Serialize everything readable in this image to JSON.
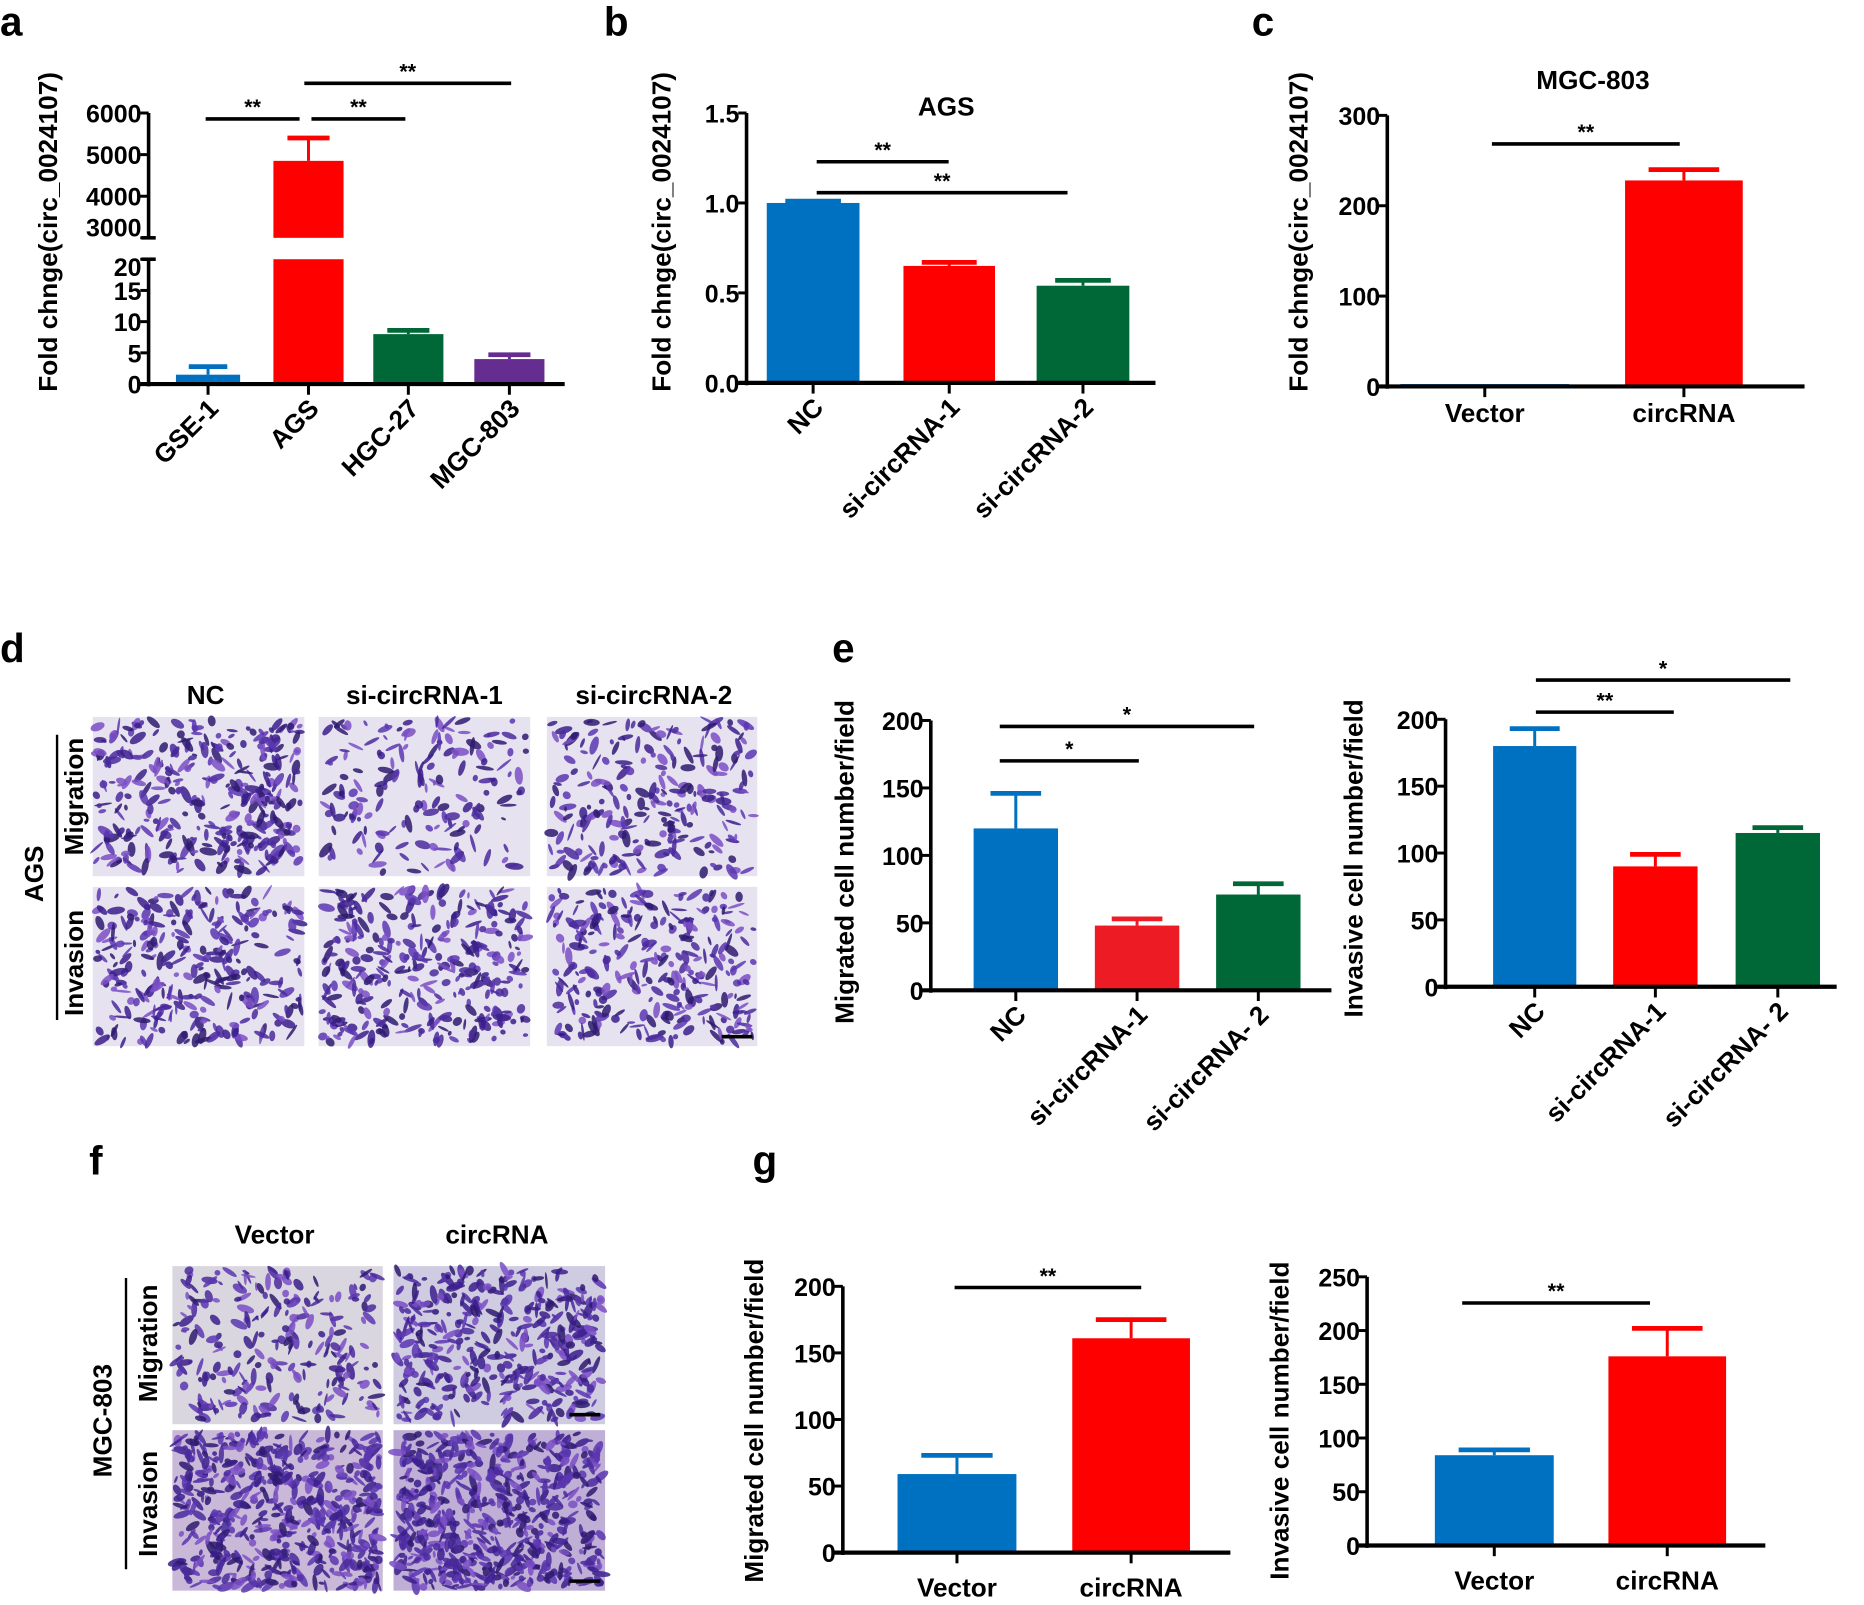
{
  "panel_labels": {
    "a": "a",
    "b": "b",
    "c": "c",
    "d": "d",
    "e": "e",
    "f": "f",
    "g": "g"
  },
  "panel_d": {
    "columns": [
      "NC",
      "si-circRNA-1",
      "si-circRNA-2"
    ],
    "rows": [
      "Migration",
      "Invasion"
    ],
    "group": "AGS"
  },
  "panel_f": {
    "columns": [
      "Vector",
      "circRNA"
    ],
    "rows": [
      "Migration",
      "Invasion"
    ],
    "group": "MGC-803"
  },
  "chart_data": [
    {
      "panel": "a",
      "type": "bar",
      "title": "",
      "ylabel": "Fold chnge(circ_0024107)",
      "categories": [
        "GSE-1",
        "AGS",
        "HGC-27",
        "MGC-803"
      ],
      "values": [
        1.5,
        4850,
        8,
        4
      ],
      "error_upper": [
        2.8,
        5400,
        8.6,
        4.7
      ],
      "colors": [
        "#0070c0",
        "#ff0000",
        "#006837",
        "#662d91"
      ],
      "yticks": [
        0,
        5,
        10,
        15,
        20,
        3000,
        4000,
        5000,
        6000
      ],
      "axis_break": [
        20,
        3000
      ],
      "ylim": [
        0,
        6000
      ],
      "significance": [
        {
          "from": "GSE-1",
          "to": "AGS",
          "label": "**"
        },
        {
          "from": "AGS",
          "to": "HGC-27",
          "label": "**"
        },
        {
          "from": "AGS",
          "to": "MGC-803",
          "label": "**"
        }
      ]
    },
    {
      "panel": "b",
      "type": "bar",
      "title": "AGS",
      "ylabel": "Fold chnge(circ_0024107)",
      "categories": [
        "NC",
        "si-circRNA-1",
        "si-circRNA-2"
      ],
      "values": [
        1.0,
        0.65,
        0.54
      ],
      "error_upper": [
        1.01,
        0.67,
        0.57
      ],
      "colors": [
        "#0070c0",
        "#ff0000",
        "#006837"
      ],
      "yticks": [
        "0.0",
        "0.5",
        "1.0",
        "1.5"
      ],
      "ylim": [
        0,
        1.5
      ],
      "significance": [
        {
          "from": "NC",
          "to": "si-circRNA-1",
          "label": "**"
        },
        {
          "from": "NC",
          "to": "si-circRNA-2",
          "label": "**"
        }
      ]
    },
    {
      "panel": "c",
      "type": "bar",
      "title": "MGC-803",
      "ylabel": "Fold chnge(circ_0024107)",
      "categories": [
        "Vector",
        "circRNA"
      ],
      "values": [
        1,
        228
      ],
      "error_upper": [
        1,
        240
      ],
      "colors": [
        "#0070c0",
        "#ff0000"
      ],
      "yticks": [
        0,
        100,
        200,
        300
      ],
      "ylim": [
        0,
        300
      ],
      "significance": [
        {
          "from": "Vector",
          "to": "circRNA",
          "label": "**"
        }
      ]
    },
    {
      "panel": "e",
      "type": "bar",
      "title": "",
      "ylabel": "Migrated cell number/field",
      "categories": [
        "NC",
        "si-circRNA-1",
        "si-circRNA- 2"
      ],
      "values": [
        120,
        48,
        71
      ],
      "error_upper": [
        146,
        53,
        79
      ],
      "colors": [
        "#0070c0",
        "#ed1c24",
        "#006837"
      ],
      "yticks": [
        0,
        50,
        100,
        150,
        200
      ],
      "ylim": [
        0,
        200
      ],
      "significance": [
        {
          "from": "NC",
          "to": "si-circRNA-1",
          "label": "*"
        },
        {
          "from": "NC",
          "to": "si-circRNA- 2",
          "label": "*"
        }
      ]
    },
    {
      "panel": "e",
      "type": "bar",
      "title": "",
      "ylabel": "Invasive cell number/field",
      "categories": [
        "NC",
        "si-circRNA-1",
        "si-circRNA- 2"
      ],
      "values": [
        180,
        90,
        115
      ],
      "error_upper": [
        193,
        99,
        119
      ],
      "colors": [
        "#0070c0",
        "#ff0000",
        "#006837"
      ],
      "yticks": [
        0,
        50,
        100,
        150,
        200
      ],
      "ylim": [
        0,
        200
      ],
      "significance": [
        {
          "from": "NC",
          "to": "si-circRNA-1",
          "label": "**"
        },
        {
          "from": "NC",
          "to": "si-circRNA- 2",
          "label": "*"
        }
      ]
    },
    {
      "panel": "g",
      "type": "bar",
      "title": "",
      "ylabel": "Migrated cell number/field",
      "categories": [
        "Vector",
        "circRNA"
      ],
      "values": [
        59,
        161
      ],
      "error_upper": [
        73,
        175
      ],
      "colors": [
        "#0070c0",
        "#ff0000"
      ],
      "yticks": [
        0,
        50,
        100,
        150,
        200
      ],
      "ylim": [
        0,
        200
      ],
      "significance": [
        {
          "from": "Vector",
          "to": "circRNA",
          "label": "**"
        }
      ]
    },
    {
      "panel": "g",
      "type": "bar",
      "title": "",
      "ylabel": "Invasive cell number/field",
      "categories": [
        "Vector",
        "circRNA"
      ],
      "values": [
        84,
        176
      ],
      "error_upper": [
        89,
        202
      ],
      "colors": [
        "#0070c0",
        "#ff0000"
      ],
      "yticks": [
        0,
        50,
        100,
        150,
        200,
        250
      ],
      "ylim": [
        0,
        250
      ],
      "significance": [
        {
          "from": "Vector",
          "to": "circRNA",
          "label": "**"
        }
      ]
    }
  ]
}
